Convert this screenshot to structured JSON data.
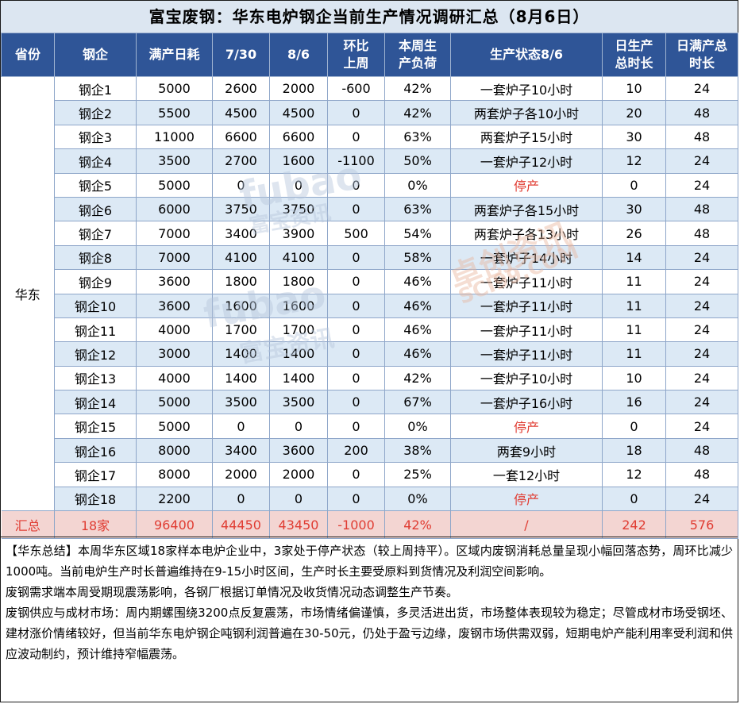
{
  "title": "富宝废钢：华东电炉钢企当前生产情况调研汇总（8月6日）",
  "headers": [
    "省份",
    "钢企",
    "满产日耗",
    "7/30",
    "8/6",
    "环比\n上周",
    "本周生\n产负荷",
    "生产状态8/6",
    "日生产\n总时长",
    "日满产总\n时长"
  ],
  "province": "华东",
  "rows": [
    {
      "name": "钢企1",
      "full": "5000",
      "d730": "2600",
      "d86": "2000",
      "wow": "-600",
      "load": "42%",
      "status": "一套炉子10小时",
      "hours": "10",
      "full_hours": "24"
    },
    {
      "name": "钢企2",
      "full": "5500",
      "d730": "4500",
      "d86": "4500",
      "wow": "0",
      "load": "42%",
      "status": "两套炉子各10小时",
      "hours": "20",
      "full_hours": "48"
    },
    {
      "name": "钢企3",
      "full": "11000",
      "d730": "6600",
      "d86": "6600",
      "wow": "0",
      "load": "63%",
      "status": "两套炉子15小时",
      "hours": "30",
      "full_hours": "48"
    },
    {
      "name": "钢企4",
      "full": "3500",
      "d730": "2700",
      "d86": "1600",
      "wow": "-1100",
      "load": "50%",
      "status": "一套炉子12小时",
      "hours": "12",
      "full_hours": "24"
    },
    {
      "name": "钢企5",
      "full": "5000",
      "d730": "0",
      "d86": "0",
      "wow": "0",
      "load": "0%",
      "status": "停产",
      "hours": "0",
      "full_hours": "24",
      "stopped": true
    },
    {
      "name": "钢企6",
      "full": "6000",
      "d730": "3750",
      "d86": "3750",
      "wow": "0",
      "load": "63%",
      "status": "两套炉子各15小时",
      "hours": "30",
      "full_hours": "48"
    },
    {
      "name": "钢企7",
      "full": "7000",
      "d730": "3400",
      "d86": "3900",
      "wow": "500",
      "load": "54%",
      "status": "两套炉子各13小时",
      "hours": "26",
      "full_hours": "48"
    },
    {
      "name": "钢企8",
      "full": "7000",
      "d730": "4100",
      "d86": "4100",
      "wow": "0",
      "load": "58%",
      "status": "一套炉子14小时",
      "hours": "14",
      "full_hours": "24"
    },
    {
      "name": "钢企9",
      "full": "3600",
      "d730": "1800",
      "d86": "1800",
      "wow": "0",
      "load": "46%",
      "status": "一套炉子11小时",
      "hours": "11",
      "full_hours": "24"
    },
    {
      "name": "钢企10",
      "full": "3600",
      "d730": "1600",
      "d86": "1600",
      "wow": "0",
      "load": "46%",
      "status": "一套炉子11小时",
      "hours": "11",
      "full_hours": "24"
    },
    {
      "name": "钢企11",
      "full": "4000",
      "d730": "1700",
      "d86": "1700",
      "wow": "0",
      "load": "46%",
      "status": "一套炉子11小时",
      "hours": "11",
      "full_hours": "24"
    },
    {
      "name": "钢企12",
      "full": "3000",
      "d730": "1400",
      "d86": "1400",
      "wow": "0",
      "load": "46%",
      "status": "一套炉子11小时",
      "hours": "11",
      "full_hours": "24"
    },
    {
      "name": "钢企13",
      "full": "4000",
      "d730": "1400",
      "d86": "1400",
      "wow": "0",
      "load": "42%",
      "status": "一套炉子10小时",
      "hours": "10",
      "full_hours": "24"
    },
    {
      "name": "钢企14",
      "full": "5000",
      "d730": "3500",
      "d86": "3500",
      "wow": "0",
      "load": "67%",
      "status": "一套炉子16小时",
      "hours": "16",
      "full_hours": "24"
    },
    {
      "name": "钢企15",
      "full": "5000",
      "d730": "0",
      "d86": "0",
      "wow": "0",
      "load": "0%",
      "status": "停产",
      "hours": "0",
      "full_hours": "24",
      "stopped": true
    },
    {
      "name": "钢企16",
      "full": "8000",
      "d730": "3400",
      "d86": "3600",
      "wow": "200",
      "load": "38%",
      "status": "两套9小时",
      "hours": "18",
      "full_hours": "48"
    },
    {
      "name": "钢企17",
      "full": "8000",
      "d730": "2000",
      "d86": "2000",
      "wow": "0",
      "load": "25%",
      "status": "一套12小时",
      "hours": "12",
      "full_hours": "48"
    },
    {
      "name": "钢企18",
      "full": "2200",
      "d730": "0",
      "d86": "0",
      "wow": "0",
      "load": "0%",
      "status": "停产",
      "hours": "0",
      "full_hours": "24",
      "stopped": true
    }
  ],
  "totals": {
    "label": "汇总",
    "count": "18家",
    "full": "96400",
    "d730": "44450",
    "d86": "43450",
    "wow": "-1000",
    "load": "42%",
    "status": "/",
    "hours": "242",
    "full_hours": "576"
  },
  "summary": [
    "【华东总结】本周华东区域18家样本电炉企业中，3家处于停产状态（较上周持平）。区域内废钢消耗总量呈现小幅回落态势，周环比减少1000吨。当前电炉生产时长普遍维持在9-15小时区间，生产时长主要受原料到货情况及利润空间影响。",
    "废钢需求端本周受期现震荡影响，各钢厂根据订单情况及收货情况动态调整生产节奏。",
    "废钢供应与成材市场：周内期螺围绕3200点反复震荡，市场情绪偏谨慎，多灵活进出货，市场整体表现较为稳定；尽管成材市场受钢坯、建材涨价情绪较好，但当前华东电炉钢企吨钢利润普遍在30-50元，仍处于盈亏边缘，废钢市场供需双弱，短期电炉产能利用率受利润和供应波动制约，预计维持窄幅震荡。"
  ],
  "watermarks": [
    "fubao",
    "富宝资讯",
    "fubao",
    "富宝资讯",
    "卓创资讯",
    "SCI99.COM"
  ],
  "colors": {
    "header_bg": "#2f5597",
    "alt_row": "#dce9f5",
    "title_bg": "#dce6f1",
    "total_bg": "#f3d5d2",
    "alert_red": "#e03c32"
  }
}
